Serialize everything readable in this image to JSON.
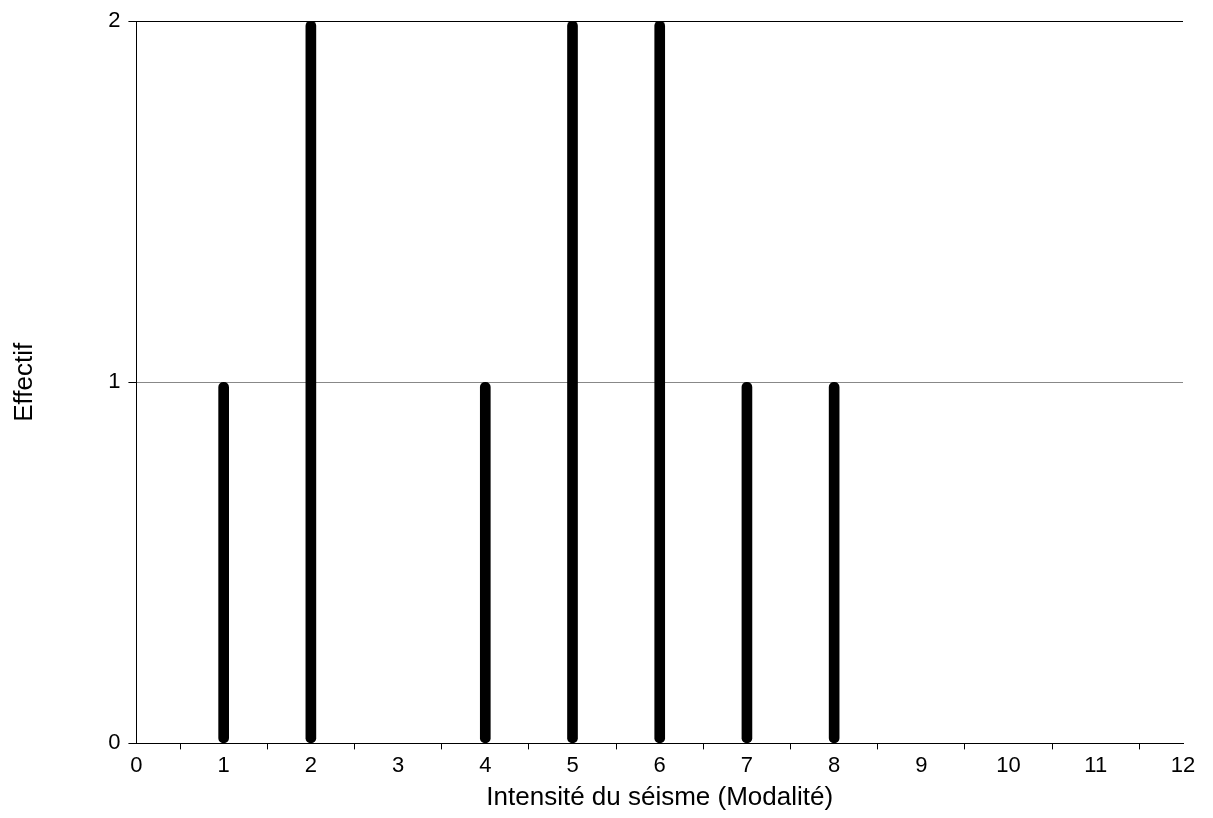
{
  "chart_data": {
    "type": "bar",
    "xlabel": "Intensité du séisme (Modalité)",
    "ylabel": "Effectif",
    "x": [
      1,
      2,
      3,
      4,
      5,
      6,
      7,
      8,
      9,
      10,
      11,
      12
    ],
    "values": [
      1,
      2,
      0,
      1,
      2,
      2,
      1,
      1,
      0,
      0,
      0,
      0
    ],
    "color": "#000000",
    "xlim": [
      0,
      12
    ],
    "xticks": [
      0,
      1,
      2,
      3,
      4,
      5,
      6,
      7,
      8,
      9,
      10,
      11,
      12
    ],
    "ylim": [
      0,
      2
    ],
    "yticks": [
      0,
      1,
      2
    ],
    "grid": "y"
  }
}
